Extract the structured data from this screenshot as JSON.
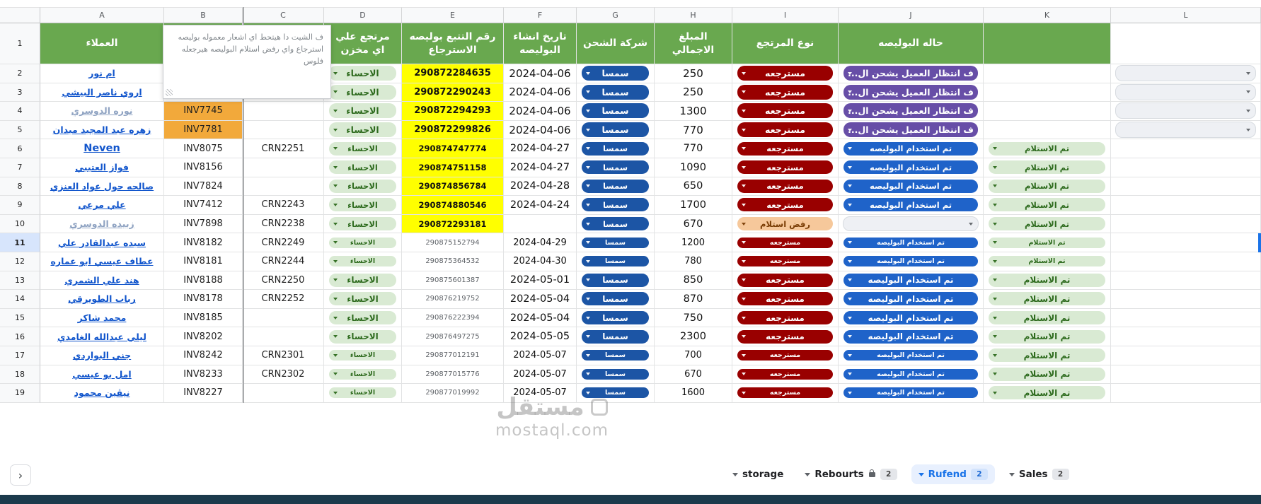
{
  "sheet": {
    "letters": [
      "A",
      "B",
      "C",
      "D",
      "E",
      "F",
      "G",
      "H",
      "I",
      "J",
      "K",
      "L"
    ],
    "first_row_number": "1"
  },
  "headers": {
    "a": "العملاء",
    "b": "",
    "c": "",
    "d": "مرتجع علي اي مخزن",
    "e": "رقم التتبع بوليصه الاسترجاع",
    "f": "تاريخ انشاء البوليصه",
    "g": "شركة الشحن",
    "h": "المبلغ الاجمالي",
    "i": "نوع المرتجع",
    "j": "حاله البوليصه",
    "k": "",
    "l": ""
  },
  "note": {
    "text": "ف الشيت دا هيتحط اي اشعار معموله بوليصه استرجاع واي رفض استلام البوليصه هيرجعله فلوس"
  },
  "rows": [
    {
      "n": "2",
      "name": "ام نور",
      "muted": false,
      "inv": "",
      "inv_orange": false,
      "crn": "",
      "wh": "الاحساء",
      "track": "290872284635",
      "yl": true,
      "date": "2024-04-06",
      "courier": "سمسا",
      "amount": "250",
      "rtype": "مسترجعه",
      "rtype_style": "red",
      "status": "ف انتظار العميل يشحن ال...",
      "status_style": "purple",
      "receipt": "",
      "l_dd": true,
      "sz": "a",
      "hl": false,
      "rcpt_b": false
    },
    {
      "n": "3",
      "name": "اروي ناصر البيشي",
      "muted": false,
      "inv": "",
      "inv_orange": false,
      "crn": "",
      "wh": "الاحساء",
      "track": "290872290243",
      "yl": true,
      "date": "2024-04-06",
      "courier": "سمسا",
      "amount": "250",
      "rtype": "مسترجعه",
      "rtype_style": "red",
      "status": "ف انتظار العميل يشحن ال...",
      "status_style": "purple",
      "receipt": "",
      "l_dd": true,
      "sz": "a",
      "hl": false,
      "rcpt_b": false
    },
    {
      "n": "4",
      "name": "نوره الدوسري",
      "muted": true,
      "inv": "INV7745",
      "inv_orange": true,
      "crn": "",
      "wh": "الاحساء",
      "track": "290872294293",
      "yl": true,
      "date": "2024-04-06",
      "courier": "سمسا",
      "amount": "1300",
      "rtype": "مسترجعه",
      "rtype_style": "red",
      "status": "ف انتظار العميل يشحن ال...",
      "status_style": "purple",
      "receipt": "",
      "l_dd": true,
      "sz": "a",
      "hl": false,
      "rcpt_b": false
    },
    {
      "n": "5",
      "name": "زهره عبد المجيد ميدان",
      "muted": false,
      "inv": "INV7781",
      "inv_orange": true,
      "crn": "",
      "wh": "الاحساء",
      "track": "290872299826",
      "yl": true,
      "date": "2024-04-06",
      "courier": "سمسا",
      "amount": "770",
      "rtype": "مسترجعه",
      "rtype_style": "red",
      "status": "ف انتظار العميل يشحن ال...",
      "status_style": "purple",
      "receipt": "",
      "l_dd": true,
      "sz": "a",
      "hl": false,
      "rcpt_b": false
    },
    {
      "n": "6",
      "name": "Neven",
      "muted": false,
      "inv": "INV8075",
      "inv_orange": false,
      "crn": "CRN2251",
      "wh": "الاحساء",
      "track": "290874747774",
      "yl": true,
      "date": "2024-04-27",
      "courier": "سمسا",
      "amount": "770",
      "rtype": "مسترجعه",
      "rtype_style": "red",
      "status": "تم استخدام البوليصه",
      "status_style": "blue",
      "receipt": "تم الاستلام",
      "l_dd": false,
      "sz": "b",
      "hl": false,
      "rcpt_b": false
    },
    {
      "n": "7",
      "name": "فواز العتيبي",
      "muted": false,
      "inv": "INV8156",
      "inv_orange": false,
      "crn": "",
      "wh": "الاحساء",
      "track": "290874751158",
      "yl": true,
      "date": "2024-04-27",
      "courier": "سمسا",
      "amount": "1090",
      "rtype": "مسترجعه",
      "rtype_style": "red",
      "status": "تم استخدام البوليصه",
      "status_style": "blue",
      "receipt": "تم الاستلام",
      "l_dd": false,
      "sz": "b",
      "hl": false,
      "rcpt_b": false
    },
    {
      "n": "8",
      "name": "صالحه حول عواد العنزي",
      "muted": false,
      "inv": "INV7824",
      "inv_orange": false,
      "crn": "",
      "wh": "الاحساء",
      "track": "290874856784",
      "yl": true,
      "date": "2024-04-28",
      "courier": "سمسا",
      "amount": "650",
      "rtype": "مسترجعه",
      "rtype_style": "red",
      "status": "تم استخدام البوليصه",
      "status_style": "blue",
      "receipt": "تم الاستلام",
      "l_dd": false,
      "sz": "b",
      "hl": false,
      "rcpt_b": false
    },
    {
      "n": "9",
      "name": "علي مرعي",
      "muted": false,
      "inv": "INV7412",
      "inv_orange": false,
      "crn": "CRN2243",
      "wh": "الاحساء",
      "track": "290874880546",
      "yl": true,
      "date": "2024-04-24",
      "courier": "سمسا",
      "amount": "1700",
      "rtype": "مسترجعه",
      "rtype_style": "red",
      "status": "تم استخدام البوليصه",
      "status_style": "blue",
      "receipt": "تم الاستلام",
      "l_dd": false,
      "sz": "b",
      "hl": false,
      "rcpt_b": false
    },
    {
      "n": "10",
      "name": "زبيده الدوسري",
      "muted": true,
      "inv": "INV7898",
      "inv_orange": false,
      "crn": "CRN2238",
      "wh": "الاحساء",
      "track": "290872293181",
      "yl": true,
      "date": "",
      "courier": "سمسا",
      "amount": "670",
      "rtype": "رفض استلام",
      "rtype_style": "peach",
      "status": "",
      "status_style": "empty",
      "receipt": "تم الاستلام",
      "l_dd": false,
      "sz": "b",
      "hl": false,
      "rcpt_b": false
    },
    {
      "n": "11",
      "name": "سيده عبدالقادر علي",
      "muted": false,
      "inv": "INV8182",
      "inv_orange": false,
      "crn": "CRN2249",
      "wh": "الاحساء",
      "track": "290875152794",
      "yl": false,
      "date": "2024-04-29",
      "courier": "سمسا",
      "amount": "1200",
      "rtype": "مسترجعه",
      "rtype_style": "red",
      "status": "تم استخدام البوليصه",
      "status_style": "blue",
      "receipt": "تم الاستلام",
      "l_dd": false,
      "sz": "c",
      "hl": true,
      "rcpt_b": false
    },
    {
      "n": "12",
      "name": "عطاف عيسي ابو عماره",
      "muted": false,
      "inv": "INV8181",
      "inv_orange": false,
      "crn": "CRN2244",
      "wh": "الاحساء",
      "track": "290875364532",
      "yl": false,
      "date": "2024-04-30",
      "courier": "سمسا",
      "amount": "780",
      "rtype": "مسترجعه",
      "rtype_style": "red",
      "status": "تم استخدام البوليصه",
      "status_style": "blue",
      "receipt": "تم الاستلام",
      "l_dd": false,
      "sz": "c",
      "hl": false,
      "rcpt_b": false
    },
    {
      "n": "13",
      "name": "هند علي الشمري",
      "muted": false,
      "inv": "INV8188",
      "inv_orange": false,
      "crn": "CRN2250",
      "wh": "الاحساء",
      "track": "290875601387",
      "yl": false,
      "date": "2024-05-01",
      "courier": "سمسا",
      "amount": "850",
      "rtype": "مسترجعه",
      "rtype_style": "red",
      "status": "تم استخدام البوليصه",
      "status_style": "blue",
      "receipt": "تم الاستلام",
      "l_dd": false,
      "sz": "d",
      "hl": false,
      "rcpt_b": true
    },
    {
      "n": "14",
      "name": "رباب الطويرقي",
      "muted": false,
      "inv": "INV8178",
      "inv_orange": false,
      "crn": "CRN2252",
      "wh": "الاحساء",
      "track": "290876219752",
      "yl": false,
      "date": "2024-05-04",
      "courier": "سمسا",
      "amount": "870",
      "rtype": "مسترجعه",
      "rtype_style": "red",
      "status": "تم استخدام البوليصه",
      "status_style": "blue",
      "receipt": "تم الاستلام",
      "l_dd": false,
      "sz": "d",
      "hl": false,
      "rcpt_b": true
    },
    {
      "n": "15",
      "name": "محمد شاكر",
      "muted": false,
      "inv": "INV8185",
      "inv_orange": false,
      "crn": "",
      "wh": "الاحساء",
      "track": "290876222394",
      "yl": false,
      "date": "2024-05-04",
      "courier": "سمسا",
      "amount": "750",
      "rtype": "مسترجعه",
      "rtype_style": "red",
      "status": "تم استخدام البوليصه",
      "status_style": "blue",
      "receipt": "تم الاستلام",
      "l_dd": false,
      "sz": "d",
      "hl": false,
      "rcpt_b": true
    },
    {
      "n": "16",
      "name": "ليلي عبدالله الغامدي",
      "muted": false,
      "inv": "INV8202",
      "inv_orange": false,
      "crn": "",
      "wh": "الاحساء",
      "track": "290876497275",
      "yl": false,
      "date": "2024-05-05",
      "courier": "سمسا",
      "amount": "2300",
      "rtype": "مسترجعه",
      "rtype_style": "red",
      "status": "تم استخدام البوليصه",
      "status_style": "blue",
      "receipt": "تم الاستلام",
      "l_dd": false,
      "sz": "d",
      "hl": false,
      "rcpt_b": true
    },
    {
      "n": "17",
      "name": "جني البواردي",
      "muted": false,
      "inv": "INV8242",
      "inv_orange": false,
      "crn": "CRN2301",
      "wh": "الاحساء",
      "track": "290877012191",
      "yl": false,
      "date": "2024-05-07",
      "courier": "سمسا",
      "amount": "700",
      "rtype": "مسترجعه",
      "rtype_style": "red",
      "status": "تم استخدام البوليصه",
      "status_style": "blue",
      "receipt": "تم الاستلام",
      "l_dd": false,
      "sz": "c",
      "hl": false,
      "rcpt_b": true
    },
    {
      "n": "18",
      "name": "امل بو عيسي",
      "muted": false,
      "inv": "INV8233",
      "inv_orange": false,
      "crn": "CRN2302",
      "wh": "الاحساء",
      "track": "290877015776",
      "yl": false,
      "date": "2024-05-07",
      "courier": "سمسا",
      "amount": "670",
      "rtype": "مسترجعه",
      "rtype_style": "red",
      "status": "تم استخدام البوليصه",
      "status_style": "blue",
      "receipt": "تم الاستلام",
      "l_dd": false,
      "sz": "c",
      "hl": false,
      "rcpt_b": true
    },
    {
      "n": "19",
      "name": "نيڤين محمود",
      "muted": false,
      "inv": "INV8227",
      "inv_orange": false,
      "crn": "",
      "wh": "الاحساء",
      "track": "290877019992",
      "yl": false,
      "date": "2024-05-07",
      "courier": "سمسا",
      "amount": "1600",
      "rtype": "مسترجعه",
      "rtype_style": "red",
      "status": "تم استخدام البوليصه",
      "status_style": "blue",
      "receipt": "تم الاستلام",
      "l_dd": false,
      "sz": "c",
      "hl": false,
      "rcpt_b": true
    }
  ],
  "tabbar": {
    "nav_arrow": "›",
    "tabs": [
      {
        "label": "storage",
        "badge": "",
        "locked": false,
        "active": false
      },
      {
        "label": "Rebourts",
        "badge": "2",
        "locked": true,
        "active": false
      },
      {
        "label": "Rufend",
        "badge": "2",
        "locked": false,
        "active": true
      },
      {
        "label": "Sales",
        "badge": "2",
        "locked": false,
        "active": false
      }
    ]
  },
  "watermark": {
    "brand": "مستقل",
    "domain": "mostaql.com"
  },
  "colors": {
    "header_green": "#69a84f",
    "highlight_yellow": "#ffff00",
    "highlight_orange": "#f2a93b",
    "chip_red": "#990000",
    "chip_purple": "#674ea7",
    "chip_blue_courier": "#1c55a5",
    "chip_blue_status": "#1f63c9",
    "chip_green_bg": "#d9ead3",
    "chip_green_text": "#2e6b1e",
    "chip_peach": "#f6c89b",
    "link_blue": "#1155cc",
    "active_tab_blue": "#1a73e8",
    "bottom_strip": "#1b3a4c"
  }
}
